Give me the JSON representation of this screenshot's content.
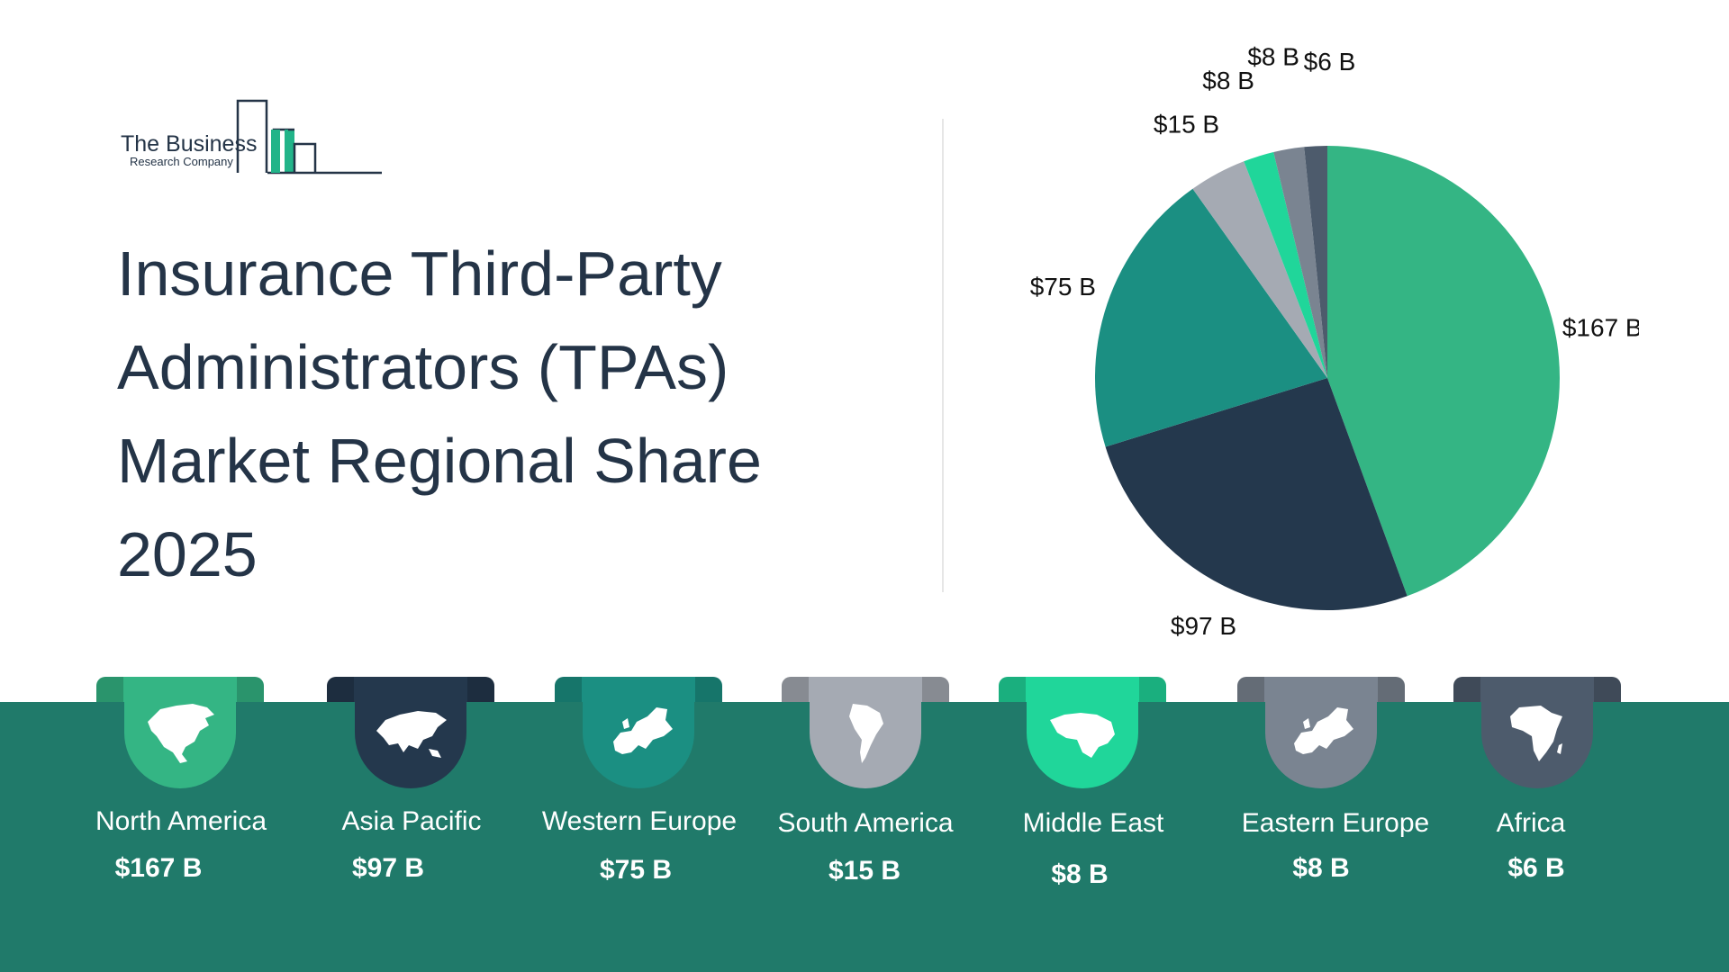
{
  "logo": {
    "line1": "The Business",
    "line2": "Research Company",
    "colors": {
      "dark": "#243447",
      "green": "#22b489"
    }
  },
  "title": "Insurance Third-Party Administrators (TPAs) Market Regional Share 2025",
  "chart_data": {
    "type": "pie",
    "unit": "$B",
    "start": "12 o'clock",
    "direction": "clockwise",
    "slices": [
      {
        "name": "North America",
        "value": 167,
        "label": "$167 B",
        "color": "#34b584"
      },
      {
        "name": "Asia Pacific",
        "value": 97,
        "label": "$97 B",
        "color": "#24384d"
      },
      {
        "name": "Western Europe",
        "value": 75,
        "label": "$75 B",
        "color": "#1b8f82"
      },
      {
        "name": "South America",
        "value": 15,
        "label": "$15 B",
        "color": "#a5aab3"
      },
      {
        "name": "Middle East",
        "value": 8,
        "label": "$8 B",
        "color": "#20d69a"
      },
      {
        "name": "Eastern Europe",
        "value": 8,
        "label": "$8 B",
        "color": "#7a8491"
      },
      {
        "name": "Africa",
        "value": 6,
        "label": "$6 B",
        "color": "#4d5b6c"
      }
    ]
  },
  "regions": [
    {
      "name": "North America",
      "value": "$167 B",
      "color": "#34b584",
      "icon": "north-america-map-icon"
    },
    {
      "name": "Asia Pacific",
      "value": "$97 B",
      "color": "#24384d",
      "icon": "asia-map-icon"
    },
    {
      "name": "Western Europe",
      "value": "$75 B",
      "color": "#1b8f82",
      "icon": "western-europe-map-icon"
    },
    {
      "name": "South America",
      "value": "$15 B",
      "color": "#a5aab3",
      "icon": "south-america-map-icon"
    },
    {
      "name": "Middle East",
      "value": "$8 B",
      "color": "#20d69a",
      "icon": "middle-east-map-icon"
    },
    {
      "name": "Eastern Europe",
      "value": "$8 B",
      "color": "#7a8491",
      "icon": "eastern-europe-map-icon"
    },
    {
      "name": "Africa",
      "value": "$6 B",
      "color": "#4d5b6c",
      "icon": "africa-map-icon"
    }
  ]
}
